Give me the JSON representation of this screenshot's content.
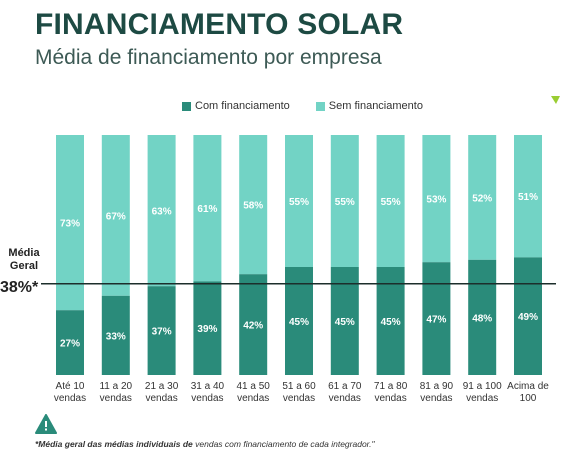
{
  "header": {
    "title": "FINANCIAMENTO SOLAR",
    "subtitle": "Média de financiamento por empresa"
  },
  "legend": {
    "with_label": "Com financiamento",
    "without_label": "Sem financiamento"
  },
  "reference": {
    "label": "Média Geral",
    "value_text": "38%*",
    "value": 38
  },
  "footnote": {
    "bold_part": "*Média geral das médias individuais de",
    "rest": " vendas com financiamento de cada integrador.\""
  },
  "icons": {
    "warning": "warning-triangle-icon",
    "corner": "corner-arrow-icon"
  },
  "colors": {
    "with": "#2a8b7a",
    "without": "#72d3c5",
    "title": "#1d4a43"
  },
  "chart_data": {
    "type": "bar",
    "stacked": true,
    "ylim": [
      0,
      100
    ],
    "categories": [
      [
        "Até 10",
        "vendas"
      ],
      [
        "11 a 20",
        "vendas"
      ],
      [
        "21 a 30",
        "vendas"
      ],
      [
        "31 a 40",
        "vendas"
      ],
      [
        "41 a 50",
        "vendas"
      ],
      [
        "51 a 60",
        "vendas"
      ],
      [
        "61 a 70",
        "vendas"
      ],
      [
        "71 a 80",
        "vendas"
      ],
      [
        "81 a 90",
        "vendas"
      ],
      [
        "91 a 100",
        "vendas"
      ],
      [
        "Acima de",
        "100"
      ]
    ],
    "series": [
      {
        "name": "Com financiamento",
        "values": [
          27,
          33,
          37,
          39,
          42,
          45,
          45,
          45,
          47,
          48,
          49
        ],
        "labels": [
          "27%",
          "33%",
          "37%",
          "39%",
          "42%",
          "45%",
          "45%",
          "45%",
          "47%",
          "48%",
          "49%"
        ]
      },
      {
        "name": "Sem financiamento",
        "values": [
          73,
          67,
          63,
          61,
          58,
          55,
          55,
          55,
          53,
          52,
          51
        ],
        "labels": [
          "73%",
          "67%",
          "63%",
          "61%",
          "58%",
          "55%",
          "55%",
          "55%",
          "53%",
          "52%",
          "51%"
        ]
      }
    ],
    "reference_line": 38,
    "legend_position": "top",
    "grid": false
  }
}
